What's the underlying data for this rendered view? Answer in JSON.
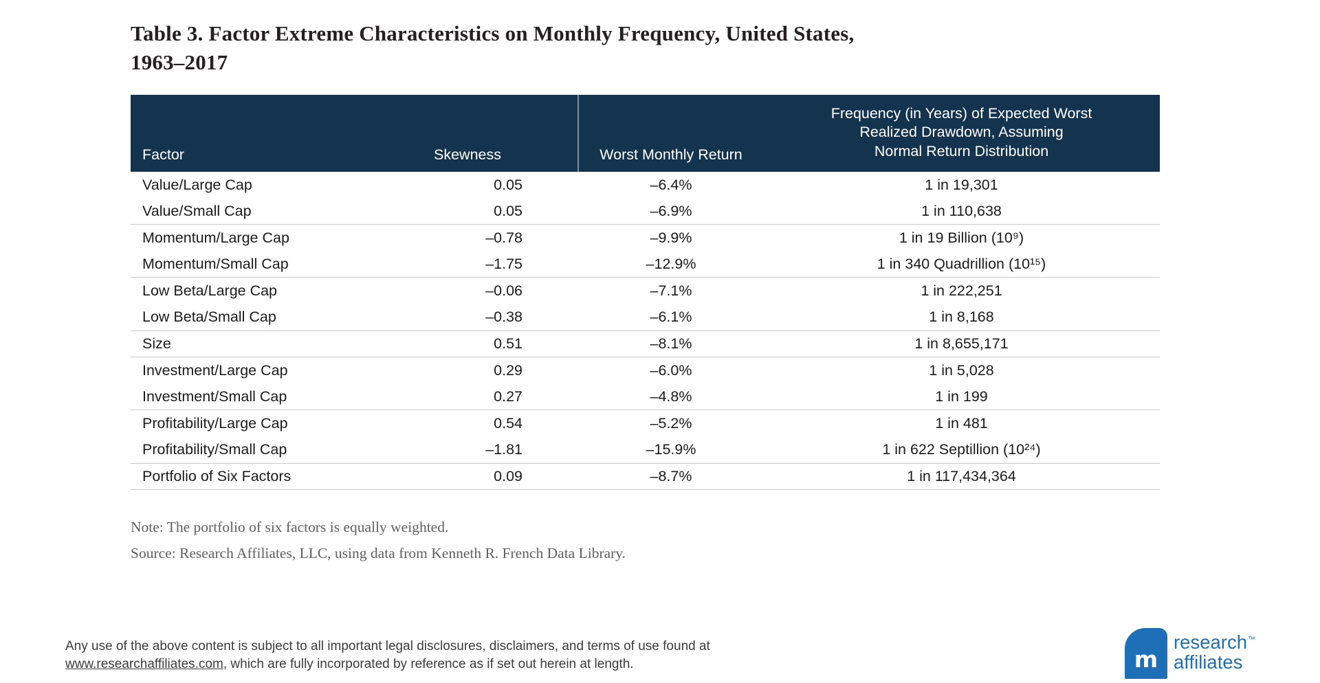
{
  "title": {
    "line1": "Table 3. Factor Extreme Characteristics on Monthly Frequency, United States,",
    "line2": "1963–2017"
  },
  "table": {
    "headers": {
      "factor": "Factor",
      "skewness": "Skewness",
      "worst_monthly_return": "Worst Monthly Return",
      "frequency": "Frequency (in Years) of Expected Worst\nRealized Drawdown, Assuming\nNormal Return Distribution"
    },
    "rows": [
      {
        "factor": "Value/Large Cap",
        "skewness": "0.05",
        "worst_monthly_return": "–6.4%",
        "frequency": "1 in 19,301"
      },
      {
        "factor": "Value/Small Cap",
        "skewness": "0.05",
        "worst_monthly_return": "–6.9%",
        "frequency": "1 in 110,638"
      },
      {
        "factor": "Momentum/Large Cap",
        "skewness": "–0.78",
        "worst_monthly_return": "–9.9%",
        "frequency": "1 in 19 Billion (10⁹)"
      },
      {
        "factor": "Momentum/Small Cap",
        "skewness": "–1.75",
        "worst_monthly_return": "–12.9%",
        "frequency": "1 in 340 Quadrillion (10¹⁵)"
      },
      {
        "factor": "Low Beta/Large Cap",
        "skewness": "–0.06",
        "worst_monthly_return": "–7.1%",
        "frequency": "1 in 222,251"
      },
      {
        "factor": "Low Beta/Small Cap",
        "skewness": "–0.38",
        "worst_monthly_return": "–6.1%",
        "frequency": "1 in 8,168"
      },
      {
        "factor": "Size",
        "skewness": "0.51",
        "worst_monthly_return": "–8.1%",
        "frequency": "1 in 8,655,171"
      },
      {
        "factor": "Investment/Large Cap",
        "skewness": "0.29",
        "worst_monthly_return": "–6.0%",
        "frequency": "1 in 5,028"
      },
      {
        "factor": "Investment/Small Cap",
        "skewness": "0.27",
        "worst_monthly_return": "–4.8%",
        "frequency": "1 in 199"
      },
      {
        "factor": "Profitability/Large Cap",
        "skewness": "0.54",
        "worst_monthly_return": "–5.2%",
        "frequency": "1 in 481"
      },
      {
        "factor": "Profitability/Small Cap",
        "skewness": "–1.81",
        "worst_monthly_return": "–15.9%",
        "frequency": "1 in 622 Septillion (10²⁴)"
      },
      {
        "factor": "Portfolio of Six Factors",
        "skewness": "0.09",
        "worst_monthly_return": "–8.7%",
        "frequency": "1 in 117,434,364"
      }
    ]
  },
  "notes": {
    "note": "Note: The portfolio of six factors is equally weighted.",
    "source": "Source: Research Affiliates, LLC, using data from Kenneth R. French Data Library."
  },
  "footer": {
    "legal_line1": "Any use of the above content is subject to all important legal disclosures, disclaimers, and terms of use found at",
    "link_text": "www.researchaffiliates.com",
    "legal_line2_after": ", which are fully incorporated by reference as if set out herein at length."
  },
  "logo": {
    "line1": "research",
    "tm": "™",
    "line2": "affiliates",
    "mark_glyph": "m"
  },
  "colors": {
    "header_navy": "#14334E",
    "logo_blue": "#1D70B7",
    "separator_gray": "#C9C9C9",
    "note_gray": "#5F5F61",
    "body_text": "#1B1B1D"
  }
}
